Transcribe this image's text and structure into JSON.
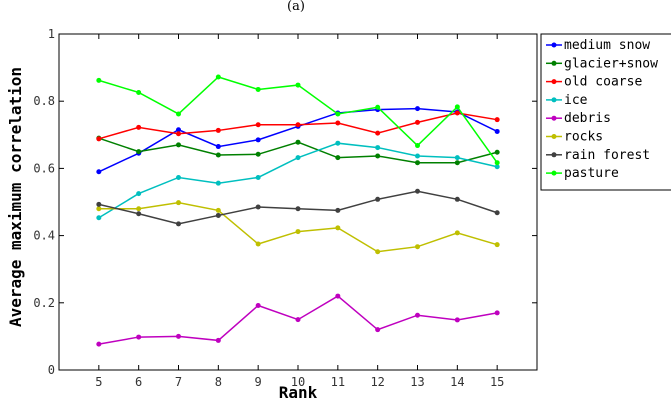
{
  "panel_label": "(a)",
  "chart_data": {
    "type": "line",
    "title": "",
    "xlabel": "Rank",
    "ylabel": "Average maximum correlation",
    "x": [
      5,
      6,
      7,
      8,
      9,
      10,
      11,
      12,
      13,
      14,
      15
    ],
    "xlim": [
      4,
      16
    ],
    "ylim": [
      0,
      1
    ],
    "xticks": [
      5,
      6,
      7,
      8,
      9,
      10,
      11,
      12,
      13,
      14,
      15
    ],
    "yticks": [
      0,
      0.2,
      0.4,
      0.6,
      0.8,
      1
    ],
    "ytick_labels": [
      "0",
      "0.2",
      "0.4",
      "0.6",
      "0.8",
      "1"
    ],
    "grid": false,
    "legend_position": "outside-right",
    "series": [
      {
        "name": "medium snow",
        "color": "#0000ff",
        "values": [
          0.59,
          0.645,
          0.715,
          0.665,
          0.685,
          0.725,
          0.765,
          0.775,
          0.778,
          0.768,
          0.71
        ]
      },
      {
        "name": "glacier+snow",
        "color": "#008000",
        "values": [
          0.69,
          0.65,
          0.67,
          0.64,
          0.642,
          0.678,
          0.632,
          0.637,
          0.617,
          0.617,
          0.648
        ]
      },
      {
        "name": "old coarse",
        "color": "#ff0000",
        "values": [
          0.688,
          0.722,
          0.703,
          0.713,
          0.73,
          0.73,
          0.735,
          0.705,
          0.737,
          0.765,
          0.745
        ]
      },
      {
        "name": "ice",
        "color": "#00bfbf",
        "values": [
          0.453,
          0.525,
          0.573,
          0.556,
          0.573,
          0.632,
          0.675,
          0.662,
          0.637,
          0.632,
          0.605
        ]
      },
      {
        "name": "debris",
        "color": "#bf00bf",
        "values": [
          0.077,
          0.098,
          0.1,
          0.088,
          0.192,
          0.15,
          0.22,
          0.12,
          0.163,
          0.149,
          0.17
        ]
      },
      {
        "name": "rocks",
        "color": "#bfbf00",
        "values": [
          0.48,
          0.48,
          0.498,
          0.475,
          0.375,
          0.412,
          0.423,
          0.352,
          0.367,
          0.408,
          0.373
        ]
      },
      {
        "name": "rain forest",
        "color": "#404040",
        "values": [
          0.493,
          0.465,
          0.435,
          0.46,
          0.485,
          0.48,
          0.475,
          0.508,
          0.532,
          0.508,
          0.468
        ]
      },
      {
        "name": "pasture",
        "color": "#00ff00",
        "values": [
          0.862,
          0.826,
          0.762,
          0.872,
          0.835,
          0.848,
          0.762,
          0.782,
          0.668,
          0.783,
          0.617
        ]
      }
    ]
  }
}
